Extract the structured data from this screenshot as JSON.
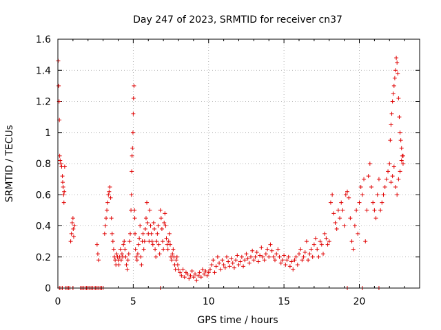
{
  "chart_data": {
    "type": "scatter",
    "title": "Day 247 of 2023, SRMTID for receiver cn37",
    "xlabel": "GPS time / hours",
    "ylabel": "SRMTID / TECUs",
    "xlim": [
      0,
      24
    ],
    "ylim": [
      0,
      1.6
    ],
    "xticks": [
      0,
      5,
      10,
      15,
      20
    ],
    "yticks": [
      0,
      0.2,
      0.4,
      0.6,
      0.8,
      1,
      1.2,
      1.4,
      1.6
    ],
    "xtick_labels": [
      "0",
      "5",
      "10",
      "15",
      "20"
    ],
    "ytick_labels": [
      "0",
      "0.2",
      "0.4",
      "0.6",
      "0.8",
      "1",
      "1.2",
      "1.4",
      "1.6"
    ],
    "grid": true,
    "legend": "none",
    "marker": "plus",
    "color": "#e00000",
    "series": [
      {
        "name": "SRMTID",
        "x": [
          0.02,
          0.05,
          0.08,
          0.1,
          0.12,
          0.15,
          0.2,
          0.25,
          0.3,
          0.32,
          0.35,
          0.38,
          0.4,
          0.42,
          0.45,
          0.85,
          0.9,
          0.95,
          1.0,
          1.02,
          1.05,
          1.1,
          2.6,
          2.65,
          2.7,
          3.1,
          3.15,
          3.2,
          3.25,
          3.3,
          3.35,
          3.4,
          3.45,
          3.5,
          3.55,
          3.6,
          3.65,
          3.7,
          3.75,
          3.8,
          3.85,
          3.9,
          3.95,
          4.0,
          4.05,
          4.1,
          4.15,
          4.2,
          4.25,
          4.3,
          4.35,
          4.4,
          4.45,
          4.5,
          4.55,
          4.6,
          4.65,
          4.7,
          4.75,
          4.8,
          4.85,
          4.88,
          4.9,
          4.92,
          4.95,
          4.98,
          5.0,
          5.02,
          5.05,
          5.08,
          5.1,
          5.12,
          5.15,
          5.2,
          5.25,
          5.3,
          5.35,
          5.4,
          5.45,
          5.5,
          5.55,
          5.6,
          5.65,
          5.7,
          5.75,
          5.8,
          5.85,
          5.9,
          5.95,
          6.0,
          6.05,
          6.1,
          6.15,
          6.2,
          6.25,
          6.3,
          6.35,
          6.4,
          6.45,
          6.5,
          6.55,
          6.6,
          6.65,
          6.7,
          6.75,
          6.8,
          6.85,
          6.9,
          6.95,
          7.0,
          7.05,
          7.1,
          7.15,
          7.2,
          7.25,
          7.3,
          7.35,
          7.4,
          7.45,
          7.5,
          7.55,
          7.6,
          7.65,
          7.7,
          7.75,
          7.8,
          7.85,
          7.9,
          7.95,
          8.0,
          8.1,
          8.2,
          8.3,
          8.4,
          8.5,
          8.6,
          8.7,
          8.8,
          8.9,
          9.0,
          9.1,
          9.2,
          9.3,
          9.4,
          9.5,
          9.6,
          9.7,
          9.8,
          9.9,
          10.0,
          10.1,
          10.2,
          10.3,
          10.4,
          10.5,
          10.6,
          10.7,
          10.8,
          10.9,
          11.0,
          11.1,
          11.2,
          11.3,
          11.4,
          11.5,
          11.6,
          11.7,
          11.8,
          11.9,
          12.0,
          12.1,
          12.2,
          12.3,
          12.4,
          12.5,
          12.6,
          12.7,
          12.8,
          12.9,
          13.0,
          13.1,
          13.2,
          13.3,
          13.4,
          13.5,
          13.6,
          13.7,
          13.8,
          13.9,
          14.0,
          14.1,
          14.2,
          14.3,
          14.4,
          14.5,
          14.6,
          14.7,
          14.8,
          14.9,
          15.0,
          15.1,
          15.2,
          15.3,
          15.4,
          15.5,
          15.6,
          15.7,
          15.8,
          15.9,
          16.0,
          16.1,
          16.2,
          16.3,
          16.4,
          16.5,
          16.6,
          16.7,
          16.8,
          16.9,
          17.0,
          17.1,
          17.2,
          17.3,
          17.4,
          17.5,
          17.6,
          17.7,
          17.8,
          17.9,
          18.0,
          18.1,
          18.2,
          18.3,
          18.4,
          18.5,
          18.6,
          18.7,
          18.8,
          18.9,
          19.0,
          19.1,
          19.2,
          19.3,
          19.4,
          19.5,
          19.6,
          19.7,
          19.8,
          19.9,
          20.0,
          20.1,
          20.2,
          20.3,
          20.4,
          20.5,
          20.6,
          20.7,
          20.8,
          20.9,
          21.0,
          21.1,
          21.2,
          21.3,
          21.4,
          21.5,
          21.6,
          21.7,
          21.8,
          21.9,
          22.0,
          22.1,
          22.2,
          22.3,
          22.4,
          22.5,
          22.6,
          22.7,
          22.8,
          22.9,
          22.05,
          22.1,
          22.15,
          22.2,
          22.25,
          22.3,
          22.35,
          22.4,
          22.45,
          22.5,
          22.55,
          22.6,
          22.65,
          22.7,
          22.75,
          22.8,
          22.85,
          22.9,
          0.1,
          0.2,
          0.3,
          0.5,
          0.6,
          0.7,
          0.8,
          1.0,
          1.5,
          1.6,
          1.7,
          1.8,
          1.9,
          2.0,
          2.1,
          2.2,
          2.3,
          2.4,
          2.5,
          2.6,
          2.7,
          2.8,
          2.9,
          3.0,
          6.8,
          19.2,
          20.2,
          21.3
        ],
        "y": [
          1.46,
          1.3,
          1.2,
          1.08,
          0.85,
          0.82,
          0.8,
          0.78,
          0.72,
          0.68,
          0.65,
          0.6,
          0.55,
          0.62,
          0.78,
          0.3,
          0.35,
          0.42,
          0.45,
          0.38,
          0.33,
          0.4,
          0.28,
          0.22,
          0.18,
          0.35,
          0.4,
          0.45,
          0.5,
          0.55,
          0.6,
          0.62,
          0.65,
          0.58,
          0.45,
          0.35,
          0.3,
          0.25,
          0.2,
          0.18,
          0.15,
          0.22,
          0.2,
          0.18,
          0.15,
          0.2,
          0.25,
          0.18,
          0.22,
          0.2,
          0.28,
          0.3,
          0.25,
          0.2,
          0.15,
          0.12,
          0.18,
          0.22,
          0.3,
          0.35,
          0.5,
          0.6,
          0.75,
          0.85,
          0.9,
          1.0,
          1.12,
          1.22,
          1.3,
          0.5,
          0.45,
          0.35,
          0.25,
          0.2,
          0.18,
          0.22,
          0.28,
          0.32,
          0.4,
          0.2,
          0.15,
          0.3,
          0.35,
          0.25,
          0.3,
          0.38,
          0.45,
          0.55,
          0.42,
          0.35,
          0.3,
          0.5,
          0.4,
          0.35,
          0.3,
          0.28,
          0.42,
          0.38,
          0.25,
          0.2,
          0.3,
          0.35,
          0.4,
          0.28,
          0.22,
          0.5,
          0.45,
          0.38,
          0.3,
          0.25,
          0.42,
          0.48,
          0.4,
          0.32,
          0.28,
          0.25,
          0.3,
          0.35,
          0.28,
          0.2,
          0.18,
          0.22,
          0.25,
          0.2,
          0.15,
          0.12,
          0.18,
          0.2,
          0.15,
          0.12,
          0.1,
          0.08,
          0.12,
          0.07,
          0.1,
          0.09,
          0.06,
          0.08,
          0.11,
          0.07,
          0.09,
          0.05,
          0.08,
          0.1,
          0.07,
          0.12,
          0.09,
          0.11,
          0.08,
          0.1,
          0.12,
          0.15,
          0.18,
          0.1,
          0.14,
          0.2,
          0.16,
          0.12,
          0.18,
          0.15,
          0.13,
          0.2,
          0.17,
          0.14,
          0.19,
          0.16,
          0.13,
          0.18,
          0.21,
          0.15,
          0.17,
          0.2,
          0.14,
          0.18,
          0.22,
          0.19,
          0.16,
          0.2,
          0.24,
          0.18,
          0.2,
          0.23,
          0.17,
          0.21,
          0.26,
          0.2,
          0.18,
          0.22,
          0.25,
          0.2,
          0.28,
          0.24,
          0.2,
          0.18,
          0.22,
          0.25,
          0.2,
          0.16,
          0.18,
          0.21,
          0.15,
          0.18,
          0.2,
          0.14,
          0.17,
          0.12,
          0.18,
          0.2,
          0.15,
          0.22,
          0.25,
          0.18,
          0.2,
          0.23,
          0.3,
          0.18,
          0.22,
          0.25,
          0.2,
          0.28,
          0.32,
          0.25,
          0.2,
          0.3,
          0.28,
          0.22,
          0.35,
          0.32,
          0.28,
          0.3,
          0.55,
          0.6,
          0.48,
          0.42,
          0.38,
          0.5,
          0.45,
          0.55,
          0.5,
          0.4,
          0.6,
          0.62,
          0.58,
          0.45,
          0.3,
          0.25,
          0.4,
          0.5,
          0.35,
          0.55,
          0.65,
          0.6,
          0.7,
          0.3,
          0.5,
          0.72,
          0.8,
          0.65,
          0.55,
          0.5,
          0.45,
          0.6,
          0.7,
          0.5,
          0.55,
          0.6,
          0.65,
          0.7,
          0.75,
          0.8,
          0.68,
          0.72,
          0.78,
          0.65,
          0.6,
          0.7,
          0.75,
          0.82,
          0.85,
          0.95,
          1.05,
          1.12,
          1.2,
          1.25,
          1.3,
          1.35,
          1.4,
          1.48,
          1.45,
          1.38,
          1.22,
          1.1,
          1.0,
          0.95,
          0.9,
          0.85,
          0.8,
          0,
          0,
          0,
          0,
          0,
          0,
          0,
          0,
          0,
          0,
          0,
          0,
          0,
          0,
          0,
          0,
          0,
          0,
          0,
          0,
          0,
          0,
          0,
          0,
          0,
          0,
          0,
          0
        ]
      }
    ]
  }
}
